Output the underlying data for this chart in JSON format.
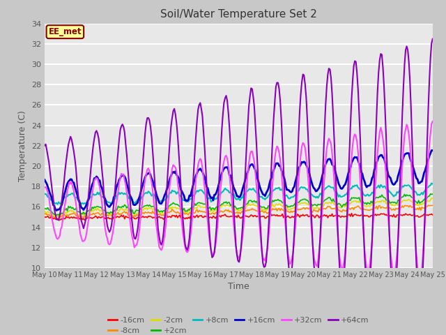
{
  "title": "Soil/Water Temperature Set 2",
  "xlabel": "Time",
  "ylabel": "Temperature (C)",
  "ylim": [
    10,
    34
  ],
  "yticks": [
    10,
    12,
    14,
    16,
    18,
    20,
    22,
    24,
    26,
    28,
    30,
    32,
    34
  ],
  "n_days": 15,
  "xtick_labels": [
    "May 10",
    "May 11",
    "May 12",
    "May 13",
    "May 14",
    "May 15",
    "May 16",
    "May 17",
    "May 18",
    "May 19",
    "May 20",
    "May 21",
    "May 22",
    "May 23",
    "May 24",
    "May 25"
  ],
  "series": [
    {
      "label": "-16cm",
      "color": "#ff0000",
      "base": 14.9,
      "base_slope": 0.02,
      "amp0": 0.08,
      "amp_slope": 0.0
    },
    {
      "label": "-8cm",
      "color": "#ff8800",
      "base": 15.1,
      "base_slope": 0.06,
      "amp0": 0.15,
      "amp_slope": 0.0
    },
    {
      "label": "-2cm",
      "color": "#dddd00",
      "base": 15.3,
      "base_slope": 0.08,
      "amp0": 0.25,
      "amp_slope": 0.0
    },
    {
      "label": "+2cm",
      "color": "#00bb00",
      "base": 15.5,
      "base_slope": 0.09,
      "amp0": 0.35,
      "amp_slope": 0.0
    },
    {
      "label": "+8cm",
      "color": "#00bbbb",
      "base": 16.7,
      "base_slope": 0.07,
      "amp0": 0.5,
      "amp_slope": 0.0
    },
    {
      "label": "+16cm",
      "color": "#0000cc",
      "base": 17.0,
      "base_slope": 0.2,
      "amp0": 1.5,
      "amp_slope": 0.0
    },
    {
      "label": "+32cm",
      "color": "#ff44ff",
      "base": 15.5,
      "base_slope": 0.08,
      "amp0": 2.5,
      "amp_slope": 0.35
    },
    {
      "label": "+64cm",
      "color": "#8800bb",
      "base": 18.5,
      "base_slope": 0.05,
      "amp0": 3.5,
      "amp_slope": 0.65
    }
  ],
  "annotation_text": "EE_met",
  "fig_bg_color": "#c8c8c8",
  "plot_bg_color": "#e8e8e8",
  "grid_color": "#ffffff",
  "title_color": "#333333",
  "label_color": "#555555"
}
